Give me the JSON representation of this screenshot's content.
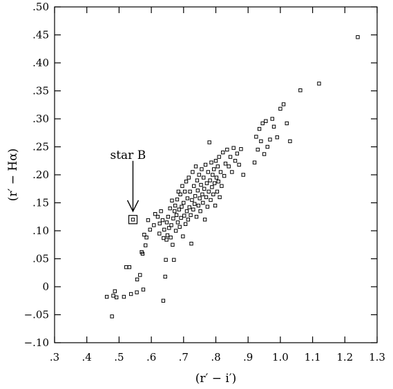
{
  "chart_data": {
    "type": "scatter",
    "title": "",
    "xlabel": "(r′ − i′)",
    "ylabel": "(r′ − Hα)",
    "xlim": [
      0.3,
      1.3
    ],
    "ylim": [
      -0.1,
      0.5
    ],
    "x_ticks": [
      0.3,
      0.4,
      0.5,
      0.6,
      0.7,
      0.8,
      0.9,
      1.0,
      1.1,
      1.2,
      1.3
    ],
    "x_tick_labels": [
      ".3",
      ".4",
      ".5",
      ".6",
      ".7",
      ".8",
      ".9",
      "1.0",
      "1.1",
      "1.2",
      "1.3"
    ],
    "y_ticks": [
      -0.1,
      -0.05,
      0,
      0.05,
      0.1,
      0.15,
      0.2,
      0.25,
      0.3,
      0.35,
      0.4,
      0.45,
      0.5
    ],
    "y_tick_labels": [
      "−.10",
      "−.05",
      "0",
      ".05",
      ".10",
      ".15",
      ".20",
      ".25",
      ".30",
      ".35",
      ".40",
      ".45",
      ".50"
    ],
    "grid": false,
    "marker": "open-square",
    "annotation": {
      "label": "star B",
      "target": [
        0.543,
        0.12
      ]
    },
    "series": [
      {
        "points": [
          [
            0.462,
            -0.018
          ],
          [
            0.478,
            -0.053
          ],
          [
            0.482,
            -0.016
          ],
          [
            0.487,
            -0.008
          ],
          [
            0.492,
            -0.019
          ],
          [
            0.515,
            -0.018
          ],
          [
            0.522,
            0.035
          ],
          [
            0.532,
            0.035
          ],
          [
            0.537,
            -0.013
          ],
          [
            0.555,
            -0.01
          ],
          [
            0.556,
            0.013
          ],
          [
            0.565,
            0.021
          ],
          [
            0.57,
            0.062
          ],
          [
            0.573,
            0.059
          ],
          [
            0.575,
            -0.005
          ],
          [
            0.578,
            0.093
          ],
          [
            0.582,
            0.074
          ],
          [
            0.585,
            0.088
          ],
          [
            0.59,
            0.119
          ],
          [
            0.596,
            0.102
          ],
          [
            0.608,
            0.11
          ],
          [
            0.612,
            0.13
          ],
          [
            0.62,
            0.125
          ],
          [
            0.625,
            0.095
          ],
          [
            0.626,
            0.113
          ],
          [
            0.63,
            0.135
          ],
          [
            0.635,
            0.119
          ],
          [
            0.637,
            -0.025
          ],
          [
            0.638,
            0.087
          ],
          [
            0.64,
            0.102
          ],
          [
            0.643,
            0.018
          ],
          [
            0.645,
            0.048
          ],
          [
            0.647,
            0.084
          ],
          [
            0.648,
            0.115
          ],
          [
            0.65,
            0.092
          ],
          [
            0.652,
            0.125
          ],
          [
            0.655,
            0.105
          ],
          [
            0.658,
            0.14
          ],
          [
            0.66,
            0.088
          ],
          [
            0.662,
            0.11
          ],
          [
            0.664,
            0.154
          ],
          [
            0.666,
            0.075
          ],
          [
            0.668,
            0.122
          ],
          [
            0.67,
            0.048
          ],
          [
            0.672,
            0.135
          ],
          [
            0.674,
            0.145
          ],
          [
            0.676,
            0.1
          ],
          [
            0.678,
            0.128
          ],
          [
            0.68,
            0.156
          ],
          [
            0.682,
            0.115
          ],
          [
            0.684,
            0.17
          ],
          [
            0.686,
            0.138
          ],
          [
            0.688,
            0.107
          ],
          [
            0.69,
            0.165
          ],
          [
            0.692,
            0.123
          ],
          [
            0.694,
            0.143
          ],
          [
            0.696,
            0.18
          ],
          [
            0.698,
            0.09
          ],
          [
            0.7,
            0.15
          ],
          [
            0.702,
            0.127
          ],
          [
            0.704,
            0.17
          ],
          [
            0.706,
            0.112
          ],
          [
            0.708,
            0.188
          ],
          [
            0.71,
            0.135
          ],
          [
            0.712,
            0.158
          ],
          [
            0.714,
            0.12
          ],
          [
            0.716,
            0.195
          ],
          [
            0.718,
            0.142
          ],
          [
            0.72,
            0.17
          ],
          [
            0.722,
            0.128
          ],
          [
            0.724,
            0.077
          ],
          [
            0.726,
            0.155
          ],
          [
            0.728,
            0.205
          ],
          [
            0.73,
            0.138
          ],
          [
            0.732,
            0.18
          ],
          [
            0.734,
            0.148
          ],
          [
            0.736,
            0.162
          ],
          [
            0.738,
            0.215
          ],
          [
            0.74,
            0.125
          ],
          [
            0.742,
            0.19
          ],
          [
            0.744,
            0.172
          ],
          [
            0.746,
            0.145
          ],
          [
            0.748,
            0.2
          ],
          [
            0.75,
            0.158
          ],
          [
            0.752,
            0.135
          ],
          [
            0.754,
            0.182
          ],
          [
            0.756,
            0.21
          ],
          [
            0.758,
            0.165
          ],
          [
            0.76,
            0.15
          ],
          [
            0.762,
            0.195
          ],
          [
            0.764,
            0.175
          ],
          [
            0.766,
            0.12
          ],
          [
            0.768,
            0.218
          ],
          [
            0.77,
            0.16
          ],
          [
            0.772,
            0.185
          ],
          [
            0.774,
            0.143
          ],
          [
            0.776,
            0.205
          ],
          [
            0.778,
            0.17
          ],
          [
            0.78,
            0.258
          ],
          [
            0.782,
            0.19
          ],
          [
            0.784,
            0.155
          ],
          [
            0.786,
            0.222
          ],
          [
            0.788,
            0.178
          ],
          [
            0.79,
            0.2
          ],
          [
            0.792,
            0.165
          ],
          [
            0.794,
            0.21
          ],
          [
            0.796,
            0.185
          ],
          [
            0.798,
            0.145
          ],
          [
            0.8,
            0.225
          ],
          [
            0.802,
            0.195
          ],
          [
            0.804,
            0.17
          ],
          [
            0.806,
            0.215
          ],
          [
            0.808,
            0.188
          ],
          [
            0.81,
            0.232
          ],
          [
            0.812,
            0.16
          ],
          [
            0.815,
            0.205
          ],
          [
            0.818,
            0.18
          ],
          [
            0.822,
            0.24
          ],
          [
            0.826,
            0.198
          ],
          [
            0.83,
            0.22
          ],
          [
            0.835,
            0.245
          ],
          [
            0.84,
            0.215
          ],
          [
            0.845,
            0.232
          ],
          [
            0.85,
            0.205
          ],
          [
            0.855,
            0.248
          ],
          [
            0.86,
            0.225
          ],
          [
            0.866,
            0.238
          ],
          [
            0.872,
            0.218
          ],
          [
            0.878,
            0.246
          ],
          [
            0.885,
            0.2
          ],
          [
            0.92,
            0.222
          ],
          [
            0.925,
            0.268
          ],
          [
            0.93,
            0.245
          ],
          [
            0.935,
            0.282
          ],
          [
            0.94,
            0.26
          ],
          [
            0.945,
            0.292
          ],
          [
            0.95,
            0.237
          ],
          [
            0.955,
            0.296
          ],
          [
            0.96,
            0.25
          ],
          [
            0.968,
            0.263
          ],
          [
            0.975,
            0.3
          ],
          [
            0.98,
            0.286
          ],
          [
            0.99,
            0.267
          ],
          [
            1.0,
            0.318
          ],
          [
            1.01,
            0.326
          ],
          [
            1.02,
            0.292
          ],
          [
            1.03,
            0.26
          ],
          [
            1.062,
            0.351
          ],
          [
            1.12,
            0.363
          ],
          [
            1.24,
            0.446
          ]
        ]
      }
    ]
  }
}
